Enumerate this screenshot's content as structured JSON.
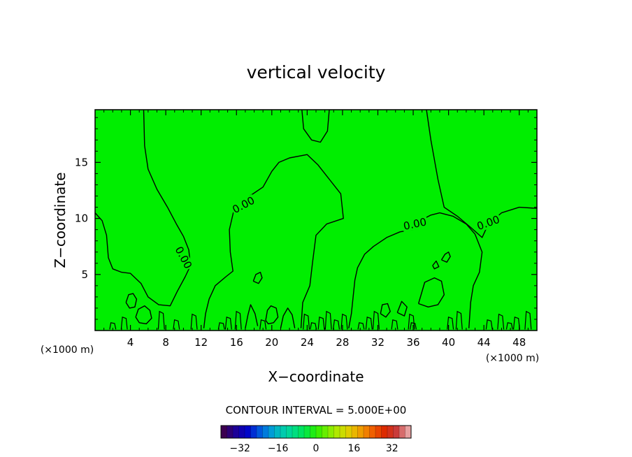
{
  "chart_data": {
    "type": "contour",
    "title": "vertical velocity",
    "xlabel": "X−coordinate",
    "ylabel": "Z−coordinate",
    "x_unit": "(×1000 m)",
    "z_unit": "(×1000 m)",
    "xlim": [
      0,
      50
    ],
    "ylim": [
      0,
      19.7
    ],
    "x_ticks": [
      4,
      8,
      12,
      16,
      20,
      24,
      28,
      32,
      36,
      40,
      44,
      48
    ],
    "x_tick_labels": [
      "4",
      "8",
      "12",
      "16",
      "20",
      "24",
      "28",
      "32",
      "36",
      "40",
      "44",
      "48"
    ],
    "y_ticks": [
      5,
      10,
      15
    ],
    "y_tick_labels": [
      "5",
      "10",
      "15"
    ],
    "field_color": "#00ee00",
    "contour_line_color": "#000000",
    "contour_labels": [
      {
        "text": "0.00",
        "x": 16.8,
        "z": 11.2,
        "angle": -28
      },
      {
        "text": "0.00",
        "x": 10.0,
        "z": 6.5,
        "angle": 62
      },
      {
        "text": "0.00",
        "x": 36.2,
        "z": 9.5,
        "angle": -12
      },
      {
        "text": "0.00",
        "x": 44.5,
        "z": 9.6,
        "angle": -20
      }
    ],
    "contours": [
      [
        [
          0,
          10.5
        ],
        [
          0.8,
          9.8
        ],
        [
          1.3,
          8.5
        ],
        [
          1.5,
          6.5
        ],
        [
          2.0,
          5.5
        ],
        [
          3.0,
          5.2
        ],
        [
          4.0,
          5.1
        ],
        [
          5.2,
          4.2
        ],
        [
          6.0,
          3.0
        ],
        [
          7.2,
          2.3
        ],
        [
          8.5,
          2.2
        ],
        [
          9.3,
          3.5
        ],
        [
          10.2,
          4.8
        ],
        [
          10.8,
          5.8
        ],
        [
          10.6,
          7.2
        ],
        [
          10.0,
          8.4
        ],
        [
          9.2,
          9.5
        ],
        [
          8.2,
          11.0
        ],
        [
          7.0,
          12.6
        ],
        [
          6.0,
          14.4
        ],
        [
          5.6,
          16.5
        ],
        [
          5.5,
          19.7
        ]
      ],
      [
        [
          12.3,
          0.2
        ],
        [
          12.5,
          1.5
        ],
        [
          12.9,
          2.8
        ],
        [
          13.6,
          4.0
        ],
        [
          14.8,
          4.8
        ],
        [
          15.6,
          5.3
        ],
        [
          15.3,
          7.0
        ],
        [
          15.2,
          9.0
        ],
        [
          15.7,
          10.7
        ],
        [
          17.5,
          12.0
        ],
        [
          19.0,
          12.8
        ],
        [
          20.0,
          14.2
        ],
        [
          20.8,
          15.0
        ],
        [
          22.0,
          15.4
        ],
        [
          24.0,
          15.7
        ],
        [
          25.2,
          14.8
        ],
        [
          26.5,
          13.5
        ],
        [
          27.8,
          12.2
        ],
        [
          28.1,
          10.0
        ],
        [
          26.2,
          9.5
        ],
        [
          25.0,
          8.5
        ],
        [
          24.6,
          6.0
        ],
        [
          24.3,
          4.0
        ],
        [
          23.5,
          2.5
        ],
        [
          23.3,
          0.2
        ]
      ],
      [
        [
          23.4,
          19.7
        ],
        [
          23.6,
          18.0
        ],
        [
          24.5,
          17.0
        ],
        [
          25.5,
          16.8
        ],
        [
          26.3,
          17.8
        ],
        [
          26.5,
          19.7
        ]
      ],
      [
        [
          37.5,
          19.7
        ],
        [
          38.0,
          17.0
        ],
        [
          38.8,
          13.5
        ],
        [
          39.5,
          11.0
        ],
        [
          41.0,
          10.2
        ],
        [
          42.5,
          9.2
        ],
        [
          43.8,
          8.3
        ],
        [
          44.5,
          9.5
        ],
        [
          46.0,
          10.5
        ],
        [
          48.0,
          11.0
        ],
        [
          50.0,
          10.9
        ]
      ],
      [
        [
          35.5,
          9.3
        ],
        [
          37.0,
          9.9
        ],
        [
          38.0,
          10.3
        ],
        [
          39.0,
          10.5
        ],
        [
          40.5,
          10.2
        ],
        [
          42.0,
          9.5
        ],
        [
          43.0,
          8.6
        ],
        [
          43.8,
          7.0
        ],
        [
          43.5,
          5.2
        ],
        [
          42.8,
          4.0
        ],
        [
          42.5,
          2.5
        ],
        [
          42.3,
          0.2
        ]
      ],
      [
        [
          36.0,
          9.0
        ],
        [
          34.5,
          8.8
        ],
        [
          33.0,
          8.3
        ],
        [
          31.5,
          7.5
        ],
        [
          30.5,
          6.8
        ],
        [
          29.7,
          5.6
        ],
        [
          29.4,
          4.5
        ],
        [
          29.2,
          3.0
        ],
        [
          29.0,
          1.5
        ],
        [
          28.7,
          0.2
        ]
      ],
      [
        [
          39.2,
          6.3
        ],
        [
          39.6,
          6.8
        ],
        [
          40.0,
          7.0
        ],
        [
          40.2,
          6.6
        ],
        [
          39.8,
          6.1
        ],
        [
          39.2,
          6.3
        ]
      ],
      [
        [
          38.2,
          5.8
        ],
        [
          38.6,
          6.2
        ],
        [
          38.9,
          5.7
        ],
        [
          38.4,
          5.5
        ],
        [
          38.2,
          5.8
        ]
      ],
      [
        [
          36.6,
          2.4
        ],
        [
          37.3,
          4.3
        ],
        [
          38.4,
          4.7
        ],
        [
          39.2,
          4.4
        ],
        [
          39.5,
          3.2
        ],
        [
          38.8,
          2.3
        ],
        [
          37.7,
          2.1
        ],
        [
          36.6,
          2.4
        ]
      ],
      [
        [
          3.5,
          2.5
        ],
        [
          3.8,
          3.2
        ],
        [
          4.3,
          3.3
        ],
        [
          4.7,
          2.8
        ],
        [
          4.5,
          2.1
        ],
        [
          3.9,
          2.0
        ],
        [
          3.5,
          2.5
        ]
      ],
      [
        [
          4.6,
          1.2
        ],
        [
          4.9,
          1.9
        ],
        [
          5.6,
          2.2
        ],
        [
          6.2,
          1.8
        ],
        [
          6.4,
          1.1
        ],
        [
          5.8,
          0.6
        ],
        [
          5.0,
          0.7
        ],
        [
          4.6,
          1.2
        ]
      ],
      [
        [
          17.0,
          0.2
        ],
        [
          17.3,
          1.4
        ],
        [
          17.6,
          2.3
        ],
        [
          18.1,
          1.5
        ],
        [
          18.4,
          0.4
        ]
      ],
      [
        [
          19.3,
          0.9
        ],
        [
          19.5,
          1.8
        ],
        [
          19.9,
          2.2
        ],
        [
          20.5,
          2.0
        ],
        [
          20.7,
          1.2
        ],
        [
          20.2,
          0.7
        ],
        [
          19.6,
          0.6
        ],
        [
          19.3,
          0.9
        ]
      ],
      [
        [
          21.0,
          0.2
        ],
        [
          21.3,
          1.3
        ],
        [
          21.8,
          2.0
        ],
        [
          22.3,
          1.4
        ],
        [
          22.6,
          0.2
        ]
      ],
      [
        [
          17.9,
          4.4
        ],
        [
          18.2,
          5.0
        ],
        [
          18.7,
          5.2
        ],
        [
          18.9,
          4.7
        ],
        [
          18.5,
          4.2
        ],
        [
          17.9,
          4.4
        ]
      ],
      [
        [
          32.3,
          1.5
        ],
        [
          32.5,
          2.3
        ],
        [
          33.1,
          2.4
        ],
        [
          33.4,
          1.7
        ],
        [
          32.9,
          1.2
        ],
        [
          32.3,
          1.5
        ]
      ],
      [
        [
          34.2,
          1.6
        ],
        [
          34.7,
          2.6
        ],
        [
          35.3,
          2.1
        ],
        [
          35.0,
          1.3
        ],
        [
          34.2,
          1.6
        ]
      ]
    ],
    "colorbar": {
      "tick_labels": [
        "−32",
        "−16",
        "0",
        "16",
        "32"
      ],
      "tick_values": [
        -32,
        -16,
        0,
        16,
        32
      ],
      "range": [
        -40,
        40
      ],
      "contour_interval_text": "CONTOUR INTERVAL = 5.000E+00"
    },
    "colormap": [
      "#3c0050",
      "#1e0096",
      "#0000c8",
      "#0050dc",
      "#0096dc",
      "#00c8b4",
      "#00dc8c",
      "#00e650",
      "#28ee00",
      "#78ee00",
      "#bee600",
      "#e6c800",
      "#f09600",
      "#f05a00",
      "#dc2800",
      "#c83c3c",
      "#e6a0a0"
    ]
  }
}
